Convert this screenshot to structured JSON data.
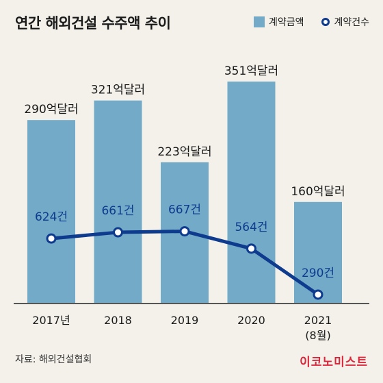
{
  "header": {
    "title": "연간 해외건설 수주액 추이",
    "legend_bar": "계약금액",
    "legend_line": "계약건수"
  },
  "footer": {
    "source": "자료: 해외건설협회",
    "brand": "이코노미스트"
  },
  "colors": {
    "bar": "#72aac8",
    "line": "#0f3b8e",
    "background": "#f3f1ea"
  },
  "chart_data": {
    "type": "bar",
    "categories": [
      "2017년",
      "2018",
      "2019",
      "2020",
      "2021\n(8월)"
    ],
    "series": [
      {
        "name": "계약금액",
        "type": "bar",
        "values": [
          290,
          321,
          223,
          351,
          160
        ],
        "labels": [
          "290억달러",
          "321억달러",
          "223억달러",
          "351억달러",
          "160억달러"
        ]
      },
      {
        "name": "계약건수",
        "type": "line",
        "values": [
          624,
          661,
          667,
          564,
          290
        ],
        "labels": [
          "624건",
          "661건",
          "667건",
          "564건",
          "290건"
        ]
      }
    ],
    "title": "연간 해외건설 수주액 추이",
    "grid": false,
    "legend": "top-right"
  }
}
